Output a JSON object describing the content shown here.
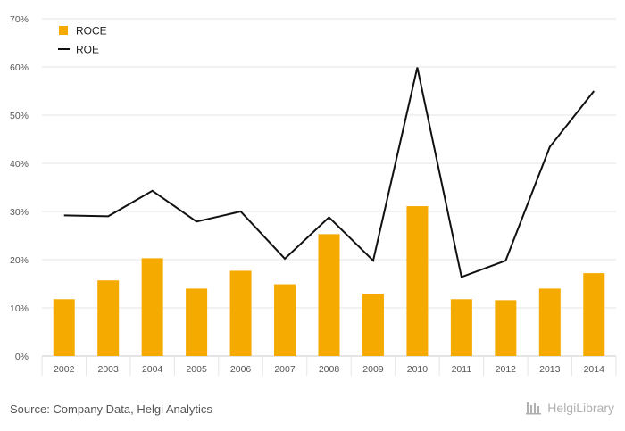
{
  "colors": {
    "roce_bar": "#f5aa00",
    "roe_line": "#111111",
    "grid": "#e6e6e6",
    "logo": "#b0b0b0"
  },
  "chart_data": {
    "type": "bar",
    "title": "",
    "xlabel": "",
    "ylabel": "",
    "categories": [
      "2002",
      "2003",
      "2004",
      "2005",
      "2006",
      "2007",
      "2008",
      "2009",
      "2010",
      "2011",
      "2012",
      "2013",
      "2014"
    ],
    "ylim": [
      0,
      70
    ],
    "yticks": [
      "0%",
      "10%",
      "20%",
      "30%",
      "40%",
      "50%",
      "60%",
      "70%"
    ],
    "grid": true,
    "legend_position": "top-left",
    "series": [
      {
        "name": "ROCE",
        "type": "bar",
        "values": [
          11.8,
          15.7,
          20.3,
          14.0,
          17.7,
          14.9,
          25.3,
          12.9,
          31.1,
          11.8,
          11.6,
          14.0,
          17.2
        ]
      },
      {
        "name": "ROE",
        "type": "line",
        "values": [
          29.2,
          29.0,
          34.3,
          27.9,
          30.0,
          20.2,
          28.8,
          19.8,
          59.9,
          16.4,
          19.8,
          43.4,
          55.0
        ]
      }
    ]
  },
  "footer": {
    "source": "Source: Company Data, Helgi Analytics",
    "logo_text": "HelgiLibrary",
    "logo_icon": "library-columns-icon"
  }
}
